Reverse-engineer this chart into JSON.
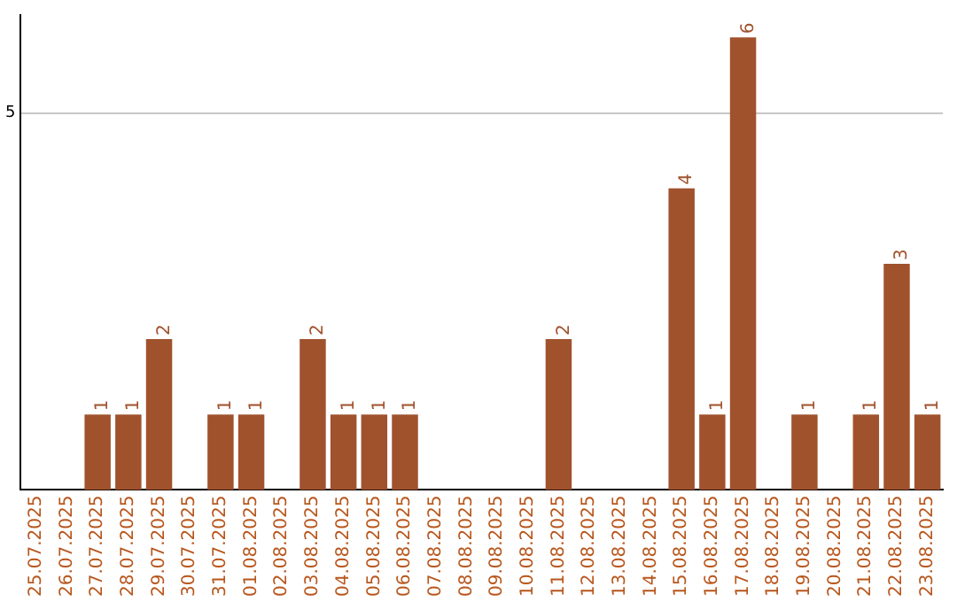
{
  "chart_data": {
    "type": "bar",
    "categories": [
      "25.07.2025",
      "26.07.2025",
      "27.07.2025",
      "28.07.2025",
      "29.07.2025",
      "30.07.2025",
      "31.07.2025",
      "01.08.2025",
      "02.08.2025",
      "03.08.2025",
      "04.08.2025",
      "05.08.2025",
      "06.08.2025",
      "07.08.2025",
      "08.08.2025",
      "09.08.2025",
      "10.08.2025",
      "11.08.2025",
      "12.08.2025",
      "13.08.2025",
      "14.08.2025",
      "15.08.2025",
      "16.08.2025",
      "17.08.2025",
      "18.08.2025",
      "19.08.2025",
      "20.08.2025",
      "21.08.2025",
      "22.08.2025",
      "23.08.2025"
    ],
    "values": [
      0,
      0,
      1,
      1,
      2,
      0,
      1,
      1,
      0,
      2,
      1,
      1,
      1,
      0,
      0,
      0,
      0,
      2,
      0,
      0,
      0,
      4,
      1,
      6,
      0,
      1,
      0,
      1,
      3,
      1
    ],
    "value_labels": [
      null,
      null,
      "1",
      "1",
      "2",
      null,
      "1",
      "1",
      null,
      "2",
      "1",
      "1",
      "1",
      null,
      null,
      null,
      null,
      "2",
      null,
      null,
      null,
      "4",
      "1",
      "6",
      null,
      "1",
      null,
      "1",
      "3",
      "1"
    ],
    "color": "#a0522d",
    "ylim": [
      0,
      6.3
    ],
    "yticks": [
      5
    ],
    "grid": "y"
  }
}
